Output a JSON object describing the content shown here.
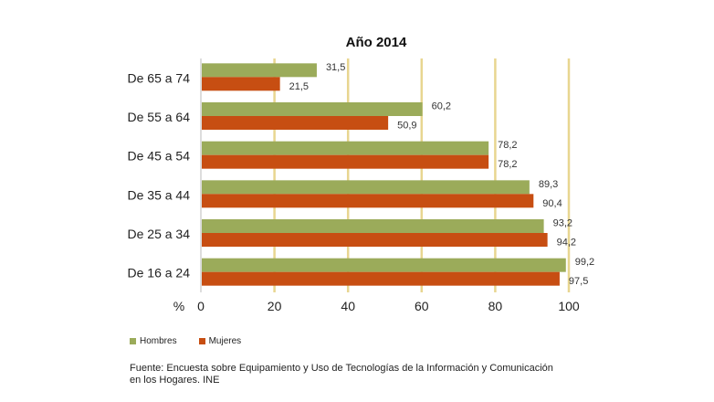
{
  "chart_data": {
    "type": "bar",
    "orientation": "horizontal",
    "title": "Año 2014",
    "xlabel": "%",
    "xlim": [
      0,
      100
    ],
    "xticks": [
      "0",
      "20",
      "40",
      "60",
      "80",
      "100"
    ],
    "grid": "vertical",
    "categories": [
      "De 65 a 74",
      "De 55 a 64",
      "De 45 a 54",
      "De 35 a 44",
      "De 25 a 34",
      "De 16 a 24"
    ],
    "series": [
      {
        "name": "Hombres",
        "color": "#9bab5a",
        "values": [
          31.5,
          60.2,
          78.2,
          89.3,
          93.2,
          99.2
        ],
        "labels": [
          "31,5",
          "60,2",
          "78,2",
          "89,3",
          "93,2",
          "99,2"
        ]
      },
      {
        "name": "Mujeres",
        "color": "#c74e12",
        "values": [
          21.5,
          50.9,
          78.2,
          90.4,
          94.2,
          97.5
        ],
        "labels": [
          "21,5",
          "50,9",
          "78,2",
          "90,4",
          "94,2",
          "97,5"
        ]
      }
    ],
    "legend_position": "bottom-left",
    "gridline_color": "#e8d690"
  },
  "footer": {
    "source": "Fuente:  Encuesta sobre Equipamiento  y Uso de Tecnologías  de la Información y Comunicación en los Hogares. INE"
  }
}
